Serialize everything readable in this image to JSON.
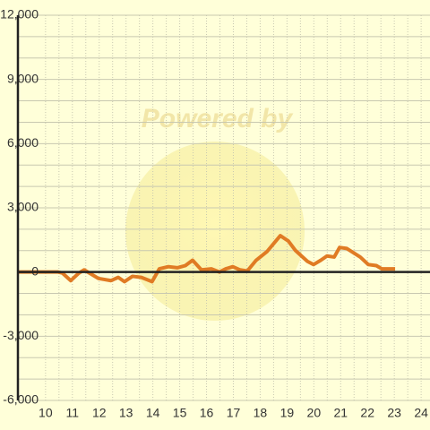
{
  "chart_data": {
    "type": "line",
    "watermark": "Powered by",
    "x": [
      9.0,
      10.47,
      10.63,
      10.94,
      11.24,
      11.44,
      11.64,
      11.97,
      12.44,
      12.71,
      12.94,
      13.24,
      13.57,
      13.97,
      14.24,
      14.58,
      14.91,
      15.21,
      15.48,
      15.81,
      16.18,
      16.48,
      16.72,
      16.98,
      17.25,
      17.52,
      17.85,
      18.25,
      18.75,
      19.05,
      19.32,
      19.76,
      19.99,
      20.26,
      20.49,
      20.76,
      20.96,
      21.23,
      21.73,
      22.03,
      22.33,
      22.53,
      23.03
    ],
    "series": [
      {
        "color": "#e07b24",
        "values": [
          0,
          0,
          -50,
          -400,
          -50,
          100,
          -50,
          -300,
          -400,
          -250,
          -450,
          -200,
          -250,
          -450,
          150,
          250,
          200,
          300,
          550,
          100,
          150,
          0,
          150,
          250,
          100,
          50,
          550,
          950,
          1700,
          1450,
          1000,
          500,
          350,
          550,
          750,
          700,
          1150,
          1100,
          700,
          350,
          300,
          150,
          150
        ]
      }
    ],
    "xlim": [
      8.97,
      24.33
    ],
    "xticks": [
      10,
      11,
      12,
      13,
      14,
      15,
      16,
      17,
      18,
      19,
      20,
      21,
      22,
      23,
      24
    ],
    "ylim": [
      -6000,
      12000
    ],
    "yticks": [
      {
        "value": -6000,
        "label": "-6,000"
      },
      {
        "value": -3000,
        "label": "-3,000"
      },
      0,
      {
        "value": 3000,
        "label": "3,000"
      },
      {
        "value": 6000,
        "label": "6,000"
      },
      {
        "value": 9000,
        "label": "9,000"
      },
      {
        "value": 12000,
        "label": "12,000"
      }
    ],
    "grid": true
  }
}
